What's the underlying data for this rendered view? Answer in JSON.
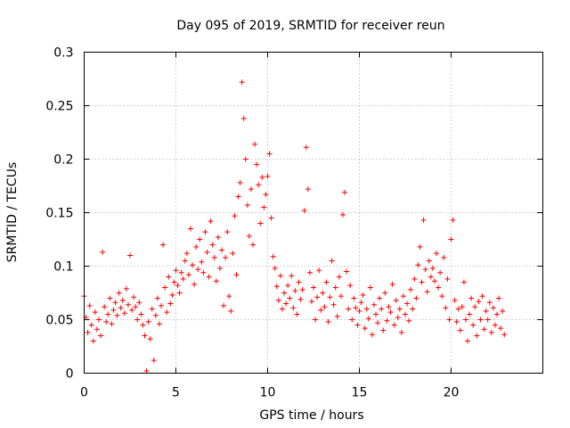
{
  "chart_data": {
    "type": "scatter",
    "title": "Day 095 of 2019, SRMTID for receiver reun",
    "xlabel": "GPS time / hours",
    "ylabel": "SRMTID / TECUs",
    "xlim": [
      0,
      25
    ],
    "ylim": [
      0,
      0.3
    ],
    "xticks": [
      0,
      5,
      10,
      15,
      20
    ],
    "xtick_labels": [
      "0",
      "5",
      "10",
      "15",
      "20"
    ],
    "yticks": [
      0,
      0.05,
      0.1,
      0.15,
      0.2,
      0.25,
      0.3
    ],
    "ytick_labels": [
      "0",
      "0.05",
      "0.1",
      "0.15",
      "0.2",
      "0.25",
      "0.3"
    ],
    "grid": true,
    "marker": "+",
    "color": "#ff0000",
    "series": [
      {
        "name": "SRMTID",
        "points": [
          [
            0.0,
            0.072
          ],
          [
            0.1,
            0.052
          ],
          [
            0.2,
            0.038
          ],
          [
            0.3,
            0.063
          ],
          [
            0.4,
            0.045
          ],
          [
            0.5,
            0.03
          ],
          [
            0.6,
            0.057
          ],
          [
            0.7,
            0.041
          ],
          [
            0.8,
            0.05
          ],
          [
            0.9,
            0.035
          ],
          [
            1.0,
            0.113
          ],
          [
            1.1,
            0.062
          ],
          [
            1.2,
            0.048
          ],
          [
            1.3,
            0.055
          ],
          [
            1.4,
            0.07
          ],
          [
            1.5,
            0.046
          ],
          [
            1.6,
            0.059
          ],
          [
            1.7,
            0.066
          ],
          [
            1.8,
            0.054
          ],
          [
            1.9,
            0.075
          ],
          [
            2.0,
            0.061
          ],
          [
            2.1,
            0.068
          ],
          [
            2.2,
            0.056
          ],
          [
            2.3,
            0.079
          ],
          [
            2.4,
            0.064
          ],
          [
            2.5,
            0.11
          ],
          [
            2.6,
            0.059
          ],
          [
            2.7,
            0.071
          ],
          [
            2.8,
            0.062
          ],
          [
            2.9,
            0.05
          ],
          [
            3.0,
            0.066
          ],
          [
            3.1,
            0.055
          ],
          [
            3.2,
            0.045
          ],
          [
            3.3,
            0.035
          ],
          [
            3.4,
            0.002
          ],
          [
            3.5,
            0.048
          ],
          [
            3.6,
            0.032
          ],
          [
            3.7,
            0.06
          ],
          [
            3.8,
            0.012
          ],
          [
            3.9,
            0.054
          ],
          [
            4.0,
            0.07
          ],
          [
            4.1,
            0.046
          ],
          [
            4.2,
            0.063
          ],
          [
            4.3,
            0.12
          ],
          [
            4.4,
            0.08
          ],
          [
            4.5,
            0.057
          ],
          [
            4.6,
            0.09
          ],
          [
            4.7,
            0.065
          ],
          [
            4.8,
            0.073
          ],
          [
            4.9,
            0.085
          ],
          [
            5.0,
            0.096
          ],
          [
            5.1,
            0.082
          ],
          [
            5.2,
            0.075
          ],
          [
            5.3,
            0.094
          ],
          [
            5.4,
            0.088
          ],
          [
            5.5,
            0.105
          ],
          [
            5.6,
            0.112
          ],
          [
            5.7,
            0.092
          ],
          [
            5.8,
            0.135
          ],
          [
            5.9,
            0.101
          ],
          [
            6.0,
            0.083
          ],
          [
            6.1,
            0.118
          ],
          [
            6.2,
            0.097
          ],
          [
            6.3,
            0.125
          ],
          [
            6.4,
            0.104
          ],
          [
            6.5,
            0.094
          ],
          [
            6.6,
            0.132
          ],
          [
            6.7,
            0.113
          ],
          [
            6.8,
            0.09
          ],
          [
            6.9,
            0.142
          ],
          [
            7.0,
            0.12
          ],
          [
            7.1,
            0.108
          ],
          [
            7.2,
            0.086
          ],
          [
            7.3,
            0.127
          ],
          [
            7.4,
            0.098
          ],
          [
            7.5,
            0.115
          ],
          [
            7.6,
            0.063
          ],
          [
            7.7,
            0.108
          ],
          [
            7.8,
            0.132
          ],
          [
            7.9,
            0.072
          ],
          [
            8.0,
            0.058
          ],
          [
            8.1,
            0.112
          ],
          [
            8.2,
            0.147
          ],
          [
            8.3,
            0.092
          ],
          [
            8.4,
            0.165
          ],
          [
            8.5,
            0.178
          ],
          [
            8.6,
            0.272
          ],
          [
            8.7,
            0.238
          ],
          [
            8.8,
            0.2
          ],
          [
            8.9,
            0.157
          ],
          [
            9.0,
            0.128
          ],
          [
            9.1,
            0.172
          ],
          [
            9.2,
            0.12
          ],
          [
            9.3,
            0.214
          ],
          [
            9.4,
            0.195
          ],
          [
            9.5,
            0.176
          ],
          [
            9.6,
            0.14
          ],
          [
            9.7,
            0.183
          ],
          [
            9.8,
            0.155
          ],
          [
            9.9,
            0.167
          ],
          [
            10.0,
            0.184
          ],
          [
            10.1,
            0.205
          ],
          [
            10.2,
            0.145
          ],
          [
            10.3,
            0.109
          ],
          [
            10.4,
            0.098
          ],
          [
            10.5,
            0.081
          ],
          [
            10.6,
            0.068
          ],
          [
            10.7,
            0.091
          ],
          [
            10.8,
            0.06
          ],
          [
            10.9,
            0.075
          ],
          [
            11.0,
            0.065
          ],
          [
            11.1,
            0.082
          ],
          [
            11.2,
            0.07
          ],
          [
            11.3,
            0.091
          ],
          [
            11.4,
            0.061
          ],
          [
            11.5,
            0.077
          ],
          [
            11.6,
            0.055
          ],
          [
            11.7,
            0.085
          ],
          [
            11.8,
            0.069
          ],
          [
            11.9,
            0.078
          ],
          [
            12.0,
            0.152
          ],
          [
            12.1,
            0.211
          ],
          [
            12.2,
            0.172
          ],
          [
            12.3,
            0.094
          ],
          [
            12.4,
            0.067
          ],
          [
            12.5,
            0.08
          ],
          [
            12.6,
            0.05
          ],
          [
            12.7,
            0.071
          ],
          [
            12.8,
            0.096
          ],
          [
            12.9,
            0.059
          ],
          [
            13.0,
            0.075
          ],
          [
            13.1,
            0.062
          ],
          [
            13.2,
            0.085
          ],
          [
            13.3,
            0.048
          ],
          [
            13.4,
            0.071
          ],
          [
            13.5,
            0.105
          ],
          [
            13.6,
            0.064
          ],
          [
            13.7,
            0.08
          ],
          [
            13.8,
            0.053
          ],
          [
            13.9,
            0.09
          ],
          [
            14.0,
            0.072
          ],
          [
            14.1,
            0.148
          ],
          [
            14.2,
            0.169
          ],
          [
            14.3,
            0.095
          ],
          [
            14.4,
            0.06
          ],
          [
            14.5,
            0.082
          ],
          [
            14.6,
            0.05
          ],
          [
            14.7,
            0.07
          ],
          [
            14.8,
            0.061
          ],
          [
            14.9,
            0.045
          ],
          [
            15.0,
            0.058
          ],
          [
            15.1,
            0.066
          ],
          [
            15.2,
            0.073
          ],
          [
            15.3,
            0.042
          ],
          [
            15.4,
            0.06
          ],
          [
            15.5,
            0.051
          ],
          [
            15.6,
            0.08
          ],
          [
            15.7,
            0.036
          ],
          [
            15.8,
            0.064
          ],
          [
            15.9,
            0.055
          ],
          [
            16.0,
            0.047
          ],
          [
            16.1,
            0.07
          ],
          [
            16.2,
            0.06
          ],
          [
            16.3,
            0.04
          ],
          [
            16.4,
            0.075
          ],
          [
            16.5,
            0.049
          ],
          [
            16.6,
            0.062
          ],
          [
            16.7,
            0.057
          ],
          [
            16.8,
            0.083
          ],
          [
            16.9,
            0.045
          ],
          [
            17.0,
            0.068
          ],
          [
            17.1,
            0.052
          ],
          [
            17.2,
            0.06
          ],
          [
            17.3,
            0.038
          ],
          [
            17.4,
            0.072
          ],
          [
            17.5,
            0.055
          ],
          [
            17.6,
            0.065
          ],
          [
            17.7,
            0.049
          ],
          [
            17.8,
            0.078
          ],
          [
            17.9,
            0.06
          ],
          [
            18.0,
            0.088
          ],
          [
            18.1,
            0.07
          ],
          [
            18.2,
            0.101
          ],
          [
            18.3,
            0.118
          ],
          [
            18.4,
            0.085
          ],
          [
            18.5,
            0.143
          ],
          [
            18.6,
            0.097
          ],
          [
            18.7,
            0.076
          ],
          [
            18.8,
            0.105
          ],
          [
            18.9,
            0.09
          ],
          [
            19.0,
            0.098
          ],
          [
            19.1,
            0.086
          ],
          [
            19.2,
            0.112
          ],
          [
            19.3,
            0.08
          ],
          [
            19.4,
            0.094
          ],
          [
            19.5,
            0.072
          ],
          [
            19.6,
            0.108
          ],
          [
            19.7,
            0.061
          ],
          [
            19.8,
            0.088
          ],
          [
            19.9,
            0.05
          ],
          [
            20.0,
            0.125
          ],
          [
            20.1,
            0.143
          ],
          [
            20.2,
            0.068
          ],
          [
            20.3,
            0.048
          ],
          [
            20.4,
            0.06
          ],
          [
            20.5,
            0.04
          ],
          [
            20.6,
            0.062
          ],
          [
            20.7,
            0.085
          ],
          [
            20.8,
            0.05
          ],
          [
            20.9,
            0.03
          ],
          [
            21.0,
            0.055
          ],
          [
            21.1,
            0.07
          ],
          [
            21.2,
            0.045
          ],
          [
            21.3,
            0.062
          ],
          [
            21.4,
            0.035
          ],
          [
            21.5,
            0.067
          ],
          [
            21.6,
            0.05
          ],
          [
            21.7,
            0.072
          ],
          [
            21.8,
            0.041
          ],
          [
            21.9,
            0.058
          ],
          [
            22.0,
            0.05
          ],
          [
            22.1,
            0.066
          ],
          [
            22.2,
            0.038
          ],
          [
            22.3,
            0.061
          ],
          [
            22.4,
            0.045
          ],
          [
            22.5,
            0.055
          ],
          [
            22.6,
            0.07
          ],
          [
            22.7,
            0.042
          ],
          [
            22.8,
            0.058
          ],
          [
            22.9,
            0.036
          ]
        ]
      }
    ]
  }
}
